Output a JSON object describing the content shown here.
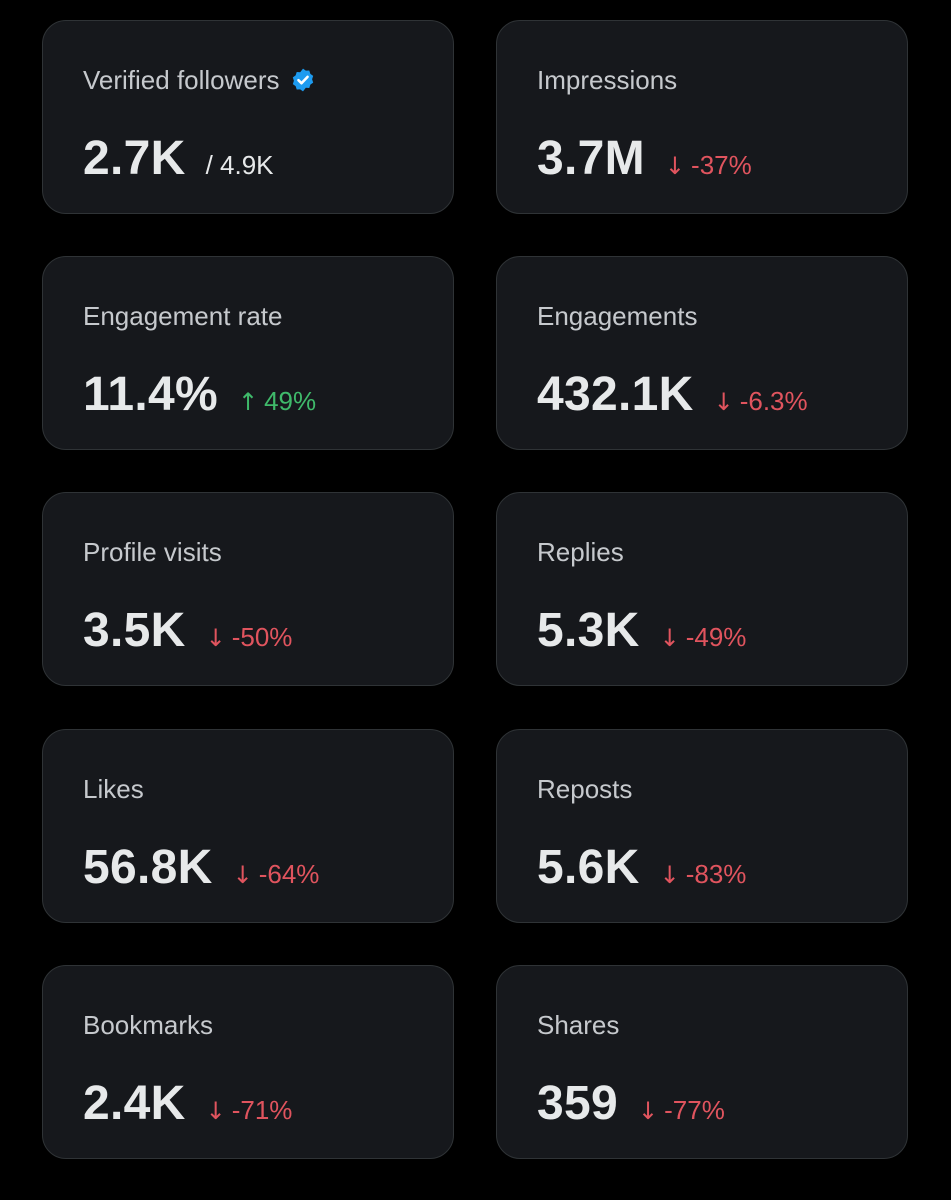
{
  "colors": {
    "background": "#000000",
    "card_background": "#16181c",
    "card_border": "#2f3336",
    "label_text": "#c6c9cd",
    "value_text": "#e7e9ea",
    "negative": "#e0545e",
    "positive": "#3fb96a",
    "verified_badge": "#1d9bf0"
  },
  "arrows": {
    "down": "↓",
    "up": "↑"
  },
  "metrics": [
    {
      "label": "Verified followers",
      "value": "2.7K",
      "secondary": "/ 4.9K",
      "badge_icon": "verified-badge-icon"
    },
    {
      "label": "Impressions",
      "value": "3.7M",
      "change": "-37%",
      "direction": "down"
    },
    {
      "label": "Engagement rate",
      "value": "11.4%",
      "change": "49%",
      "direction": "up"
    },
    {
      "label": "Engagements",
      "value": "432.1K",
      "change": "-6.3%",
      "direction": "down"
    },
    {
      "label": "Profile visits",
      "value": "3.5K",
      "change": "-50%",
      "direction": "down"
    },
    {
      "label": "Replies",
      "value": "5.3K",
      "change": "-49%",
      "direction": "down"
    },
    {
      "label": "Likes",
      "value": "56.8K",
      "change": "-64%",
      "direction": "down"
    },
    {
      "label": "Reposts",
      "value": "5.6K",
      "change": "-83%",
      "direction": "down"
    },
    {
      "label": "Bookmarks",
      "value": "2.4K",
      "change": "-71%",
      "direction": "down"
    },
    {
      "label": "Shares",
      "value": "359",
      "change": "-77%",
      "direction": "down"
    }
  ]
}
